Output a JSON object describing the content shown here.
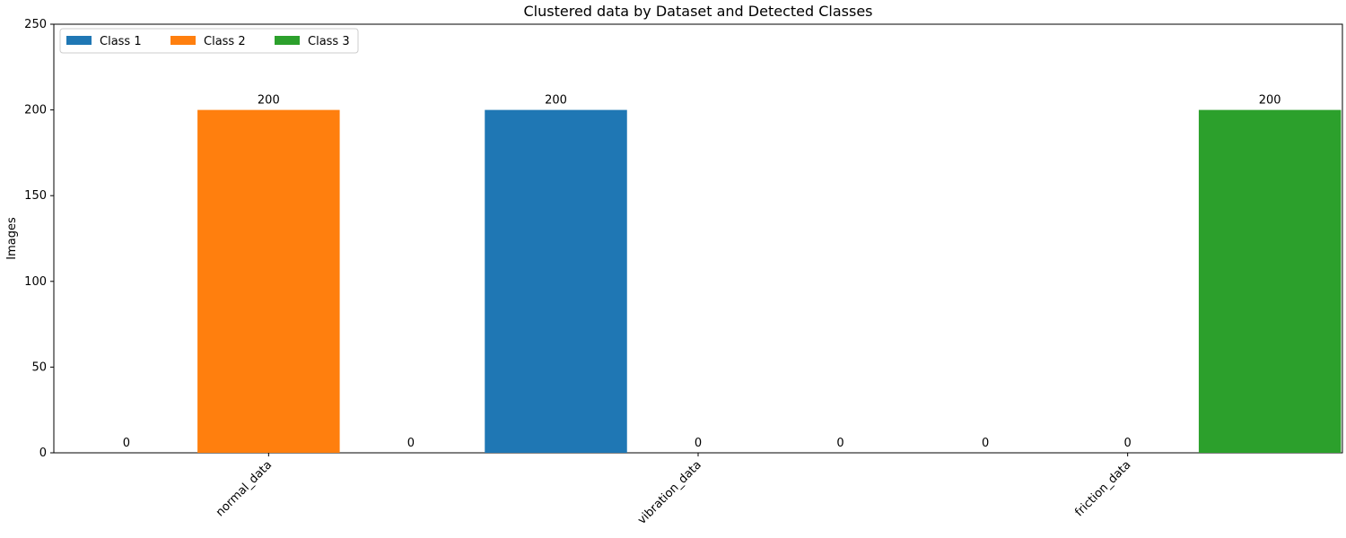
{
  "chart_data": {
    "type": "bar",
    "title": "Clustered data by Dataset and Detected Classes",
    "xlabel": "",
    "ylabel": "Images",
    "categories": [
      "normal_data",
      "vibration_data",
      "friction_data"
    ],
    "series": [
      {
        "name": "Class 1",
        "color": "#1f77b4",
        "values": [
          0,
          200,
          0
        ]
      },
      {
        "name": "Class 2",
        "color": "#ff7f0e",
        "values": [
          200,
          0,
          0
        ]
      },
      {
        "name": "Class 3",
        "color": "#2ca02c",
        "values": [
          0,
          0,
          200
        ]
      }
    ],
    "ylim": [
      0,
      250
    ],
    "yticks": [
      0,
      50,
      100,
      150,
      200,
      250
    ],
    "grid": false,
    "legend_position": "top-left",
    "xtick_rotation_deg": 45,
    "show_value_labels": true
  }
}
